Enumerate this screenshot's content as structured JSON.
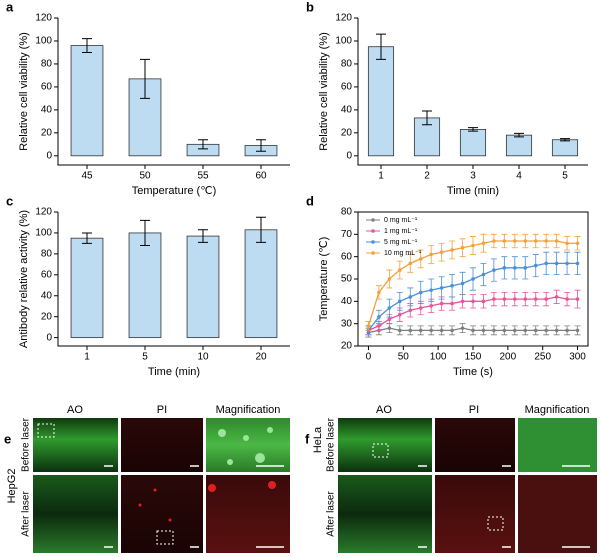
{
  "chart_data": [
    {
      "type": "bar",
      "panel": "a",
      "y_label": "Relative cell viability (%)",
      "x_label": "Temperature (℃)",
      "categories": [
        "45",
        "50",
        "55",
        "60"
      ],
      "values": [
        96,
        67,
        10,
        9
      ],
      "errors": [
        6,
        17,
        4,
        5
      ],
      "color": "#bddcf2",
      "ylim": [
        -8,
        120
      ],
      "yticks": [
        0,
        20,
        40,
        60,
        80,
        100,
        120
      ]
    },
    {
      "type": "bar",
      "panel": "b",
      "y_label": "Relative cell viability (%)",
      "x_label": "Time (min)",
      "categories": [
        "1",
        "2",
        "3",
        "4",
        "5"
      ],
      "values": [
        95,
        33,
        23,
        18,
        14
      ],
      "errors": [
        11,
        6,
        1.5,
        1.5,
        1
      ],
      "color": "#bddcf2",
      "ylim": [
        -8,
        120
      ],
      "yticks": [
        0,
        20,
        40,
        60,
        80,
        100,
        120
      ]
    },
    {
      "type": "bar",
      "panel": "c",
      "y_label": "Antibody relative activity (%)",
      "x_label": "Time (min)",
      "categories": [
        "1",
        "5",
        "10",
        "20"
      ],
      "values": [
        95,
        100,
        97,
        103
      ],
      "errors": [
        5,
        12,
        6,
        12
      ],
      "color": "#bddcf2",
      "ylim": [
        -8,
        120
      ],
      "yticks": [
        0,
        20,
        40,
        60,
        80,
        100,
        120
      ]
    },
    {
      "type": "line",
      "panel": "d",
      "y_label": "Temperature (℃)",
      "x_label": "Time (s)",
      "legend": "upper left",
      "x": [
        0,
        15,
        30,
        45,
        60,
        75,
        90,
        105,
        120,
        135,
        150,
        165,
        180,
        195,
        210,
        225,
        240,
        255,
        270,
        285,
        300
      ],
      "series": [
        {
          "name": "0 mg mL⁻¹",
          "color": "#7f7f7f",
          "values": [
            26,
            27,
            28,
            27,
            27,
            27,
            27,
            27,
            27,
            28,
            27,
            27,
            27,
            27,
            27,
            27,
            27,
            27,
            27,
            27,
            27
          ],
          "errors": [
            2,
            2,
            2,
            2,
            2,
            2,
            2,
            2,
            2,
            2,
            2,
            2,
            2,
            2,
            2,
            2,
            2,
            2,
            2,
            2,
            2
          ]
        },
        {
          "name": "1 mg mL⁻¹",
          "color": "#e8559b",
          "values": [
            27,
            29,
            32,
            34,
            36,
            37,
            38,
            39,
            39,
            40,
            40,
            40,
            41,
            41,
            41,
            41,
            41,
            41,
            42,
            41,
            41
          ],
          "errors": [
            2,
            2,
            2,
            3,
            3,
            3,
            3,
            3,
            3,
            3,
            3,
            3,
            3,
            3,
            3,
            3,
            3,
            3,
            3,
            3,
            4
          ]
        },
        {
          "name": "5 mg mL⁻¹",
          "color": "#4a90d9",
          "values": [
            27,
            33,
            37,
            40,
            42,
            44,
            45,
            46,
            47,
            48,
            50,
            52,
            54,
            55,
            55,
            55,
            56,
            57,
            57,
            57,
            57
          ],
          "errors": [
            2,
            3,
            4,
            4,
            4,
            5,
            5,
            5,
            5,
            5,
            5,
            5,
            5,
            5,
            5,
            5,
            5,
            5,
            5,
            5,
            5
          ]
        },
        {
          "name": "10 mg mL⁻¹",
          "color": "#f5a13b",
          "values": [
            29,
            44,
            50,
            54,
            57,
            59,
            61,
            62,
            63,
            64,
            65,
            66,
            67,
            67,
            67,
            67,
            67,
            67,
            67,
            66,
            66
          ],
          "errors": [
            2,
            3,
            4,
            4,
            4,
            4,
            4,
            4,
            4,
            4,
            4,
            4,
            3,
            3,
            3,
            3,
            3,
            3,
            3,
            3,
            3
          ]
        }
      ],
      "xlim": [
        -15,
        315
      ],
      "ylim": [
        20,
        80
      ],
      "xticks": [
        0,
        50,
        100,
        150,
        200,
        250,
        300
      ],
      "yticks": [
        20,
        30,
        40,
        50,
        60,
        70,
        80
      ]
    }
  ],
  "image_panels": [
    {
      "label": "e",
      "cell_line": "HepG2",
      "columns": [
        "AO",
        "PI",
        "Magnification"
      ],
      "rows": [
        "Before laser",
        "After laser"
      ]
    },
    {
      "label": "f",
      "cell_line": "HeLa",
      "columns": [
        "AO",
        "PI",
        "Magnification"
      ],
      "rows": [
        "Before laser",
        "After laser"
      ]
    }
  ]
}
